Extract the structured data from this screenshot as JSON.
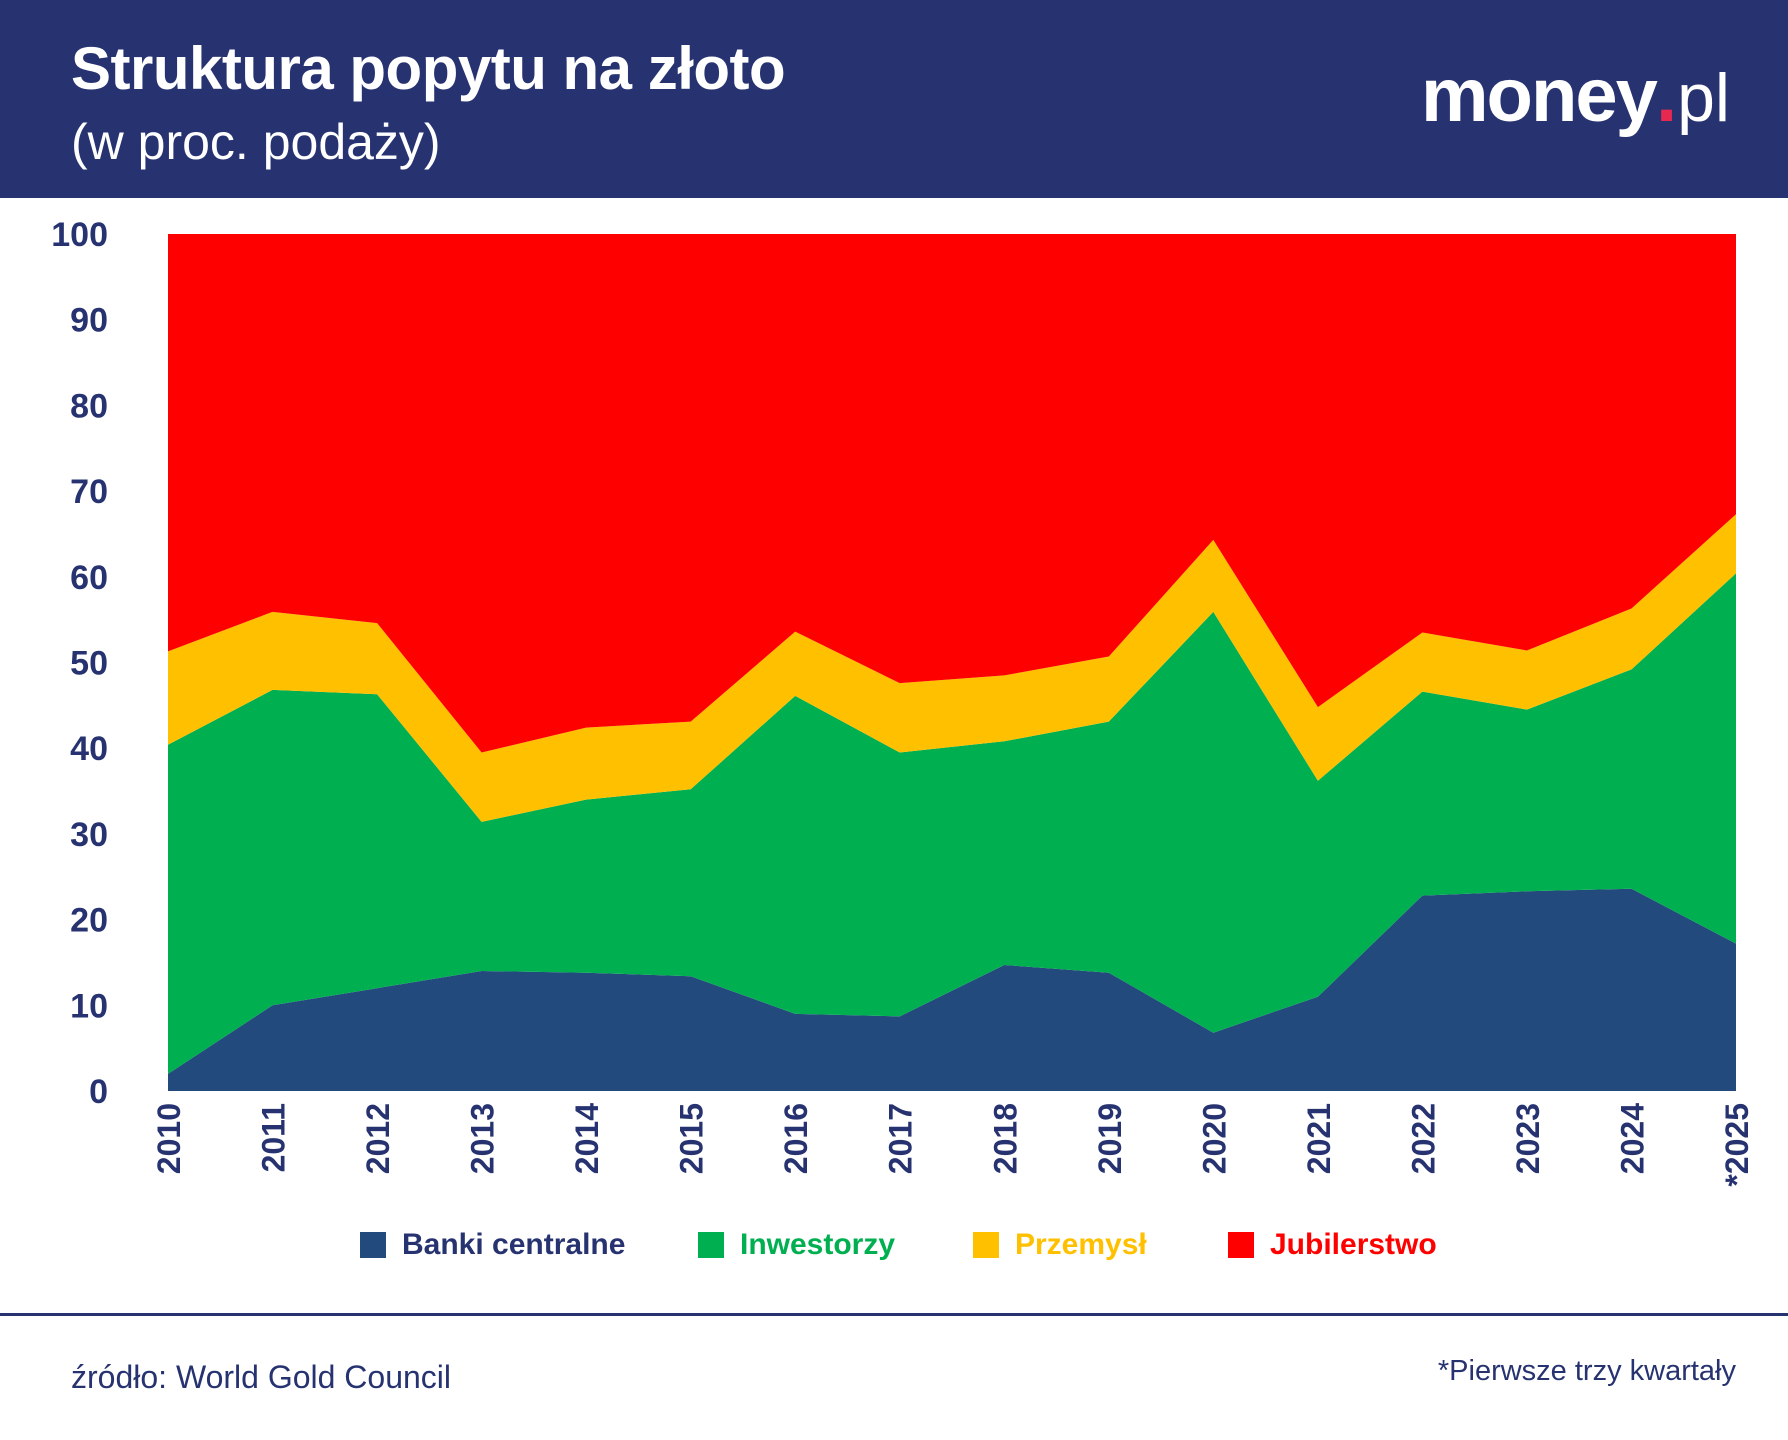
{
  "header": {
    "title": "Struktura popytu na złoto",
    "subtitle": "(w proc. podaży)",
    "logo_brand": "money",
    "logo_dot": ".",
    "logo_tld": "pl"
  },
  "colors": {
    "header_bg": "#273370",
    "text_dark": "#273370",
    "banki": "#234a7c",
    "inwestorzy": "#00af50",
    "przemysl": "#ffc000",
    "jubilerstwo": "#ff0000",
    "logo_dot": "#e8294f"
  },
  "chart_data": {
    "type": "area",
    "stacked": true,
    "categories": [
      "2010",
      "2011",
      "2012",
      "2013",
      "2014",
      "2015",
      "2016",
      "2017",
      "2018",
      "2019",
      "2020",
      "2021",
      "2022",
      "2023",
      "2024",
      "*2025"
    ],
    "ylim": [
      0,
      100
    ],
    "yticks": [
      0,
      10,
      20,
      30,
      40,
      50,
      60,
      70,
      80,
      90,
      100
    ],
    "series": [
      {
        "name": "Banki centralne",
        "color": "#234a7c",
        "values": [
          2,
          10,
          12,
          14,
          13.8,
          13.4,
          9,
          8.7,
          14.7,
          13.8,
          6.8,
          11,
          22.8,
          23.3,
          23.6,
          17.2
        ]
      },
      {
        "name": "Inwestorzy",
        "color": "#00af50",
        "values": [
          38.4,
          36.8,
          34.3,
          17.4,
          20.2,
          21.8,
          37.1,
          30.8,
          26.1,
          29.3,
          49.1,
          25.2,
          23.8,
          21.2,
          25.6,
          43.2
        ]
      },
      {
        "name": "Przemysł",
        "color": "#ffc000",
        "values": [
          10.9,
          9.1,
          8.3,
          8.1,
          8.4,
          7.9,
          7.5,
          8.1,
          7.7,
          7.6,
          8.4,
          8.6,
          6.9,
          6.9,
          7.1,
          6.9
        ]
      },
      {
        "name": "Jubilerstwo",
        "color": "#ff0000",
        "values": [
          48.7,
          44.1,
          45.4,
          60.5,
          57.6,
          56.9,
          46.4,
          52.4,
          51.5,
          49.3,
          35.7,
          55.2,
          46.5,
          48.6,
          43.7,
          32.7
        ]
      }
    ],
    "xlabel": "",
    "ylabel": "",
    "legend_position": "bottom-center"
  },
  "footer": {
    "source": "źródło: World Gold Council",
    "footnote": "*Pierwsze trzy kwartały"
  }
}
